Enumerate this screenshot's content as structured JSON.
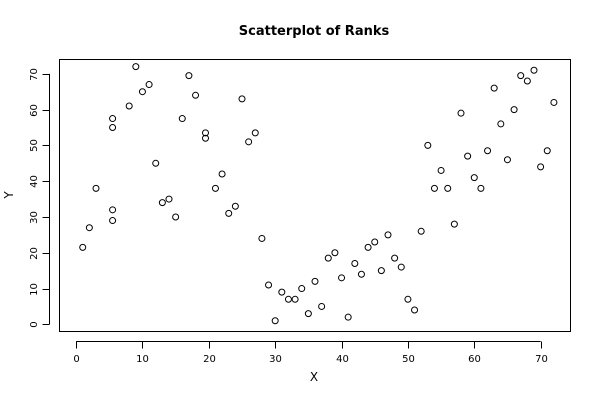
{
  "chart_data": {
    "type": "scatter",
    "title": "Scatterplot of Ranks",
    "xlabel": "X",
    "ylabel": "Y",
    "xlim": [
      -2.5,
      74.5
    ],
    "ylim": [
      -2.0,
      74.0
    ],
    "x_ticks": [
      0,
      10,
      20,
      30,
      40,
      50,
      60,
      70
    ],
    "y_ticks": [
      0,
      10,
      20,
      30,
      40,
      50,
      60,
      70
    ],
    "x_tick_labels": [
      "0",
      "10",
      "20",
      "30",
      "40",
      "50",
      "60",
      "70"
    ],
    "y_tick_labels": [
      "0",
      "10",
      "20",
      "30",
      "40",
      "50",
      "60",
      "70"
    ],
    "grid": false,
    "marker": "open-circle",
    "marker_color": "#000000",
    "points": [
      [
        1,
        21.5
      ],
      [
        2,
        27
      ],
      [
        3,
        38
      ],
      [
        5.5,
        57.5
      ],
      [
        5.5,
        55
      ],
      [
        5.5,
        32
      ],
      [
        5.5,
        29
      ],
      [
        8,
        61
      ],
      [
        9,
        72
      ],
      [
        10,
        65
      ],
      [
        11,
        67
      ],
      [
        12,
        45
      ],
      [
        13,
        34
      ],
      [
        14,
        35
      ],
      [
        15,
        30
      ],
      [
        16,
        57.5
      ],
      [
        17,
        69.5
      ],
      [
        18,
        64
      ],
      [
        19.5,
        53.5
      ],
      [
        19.5,
        52
      ],
      [
        21,
        38
      ],
      [
        22,
        42
      ],
      [
        23,
        31
      ],
      [
        24,
        33
      ],
      [
        25,
        63
      ],
      [
        26,
        51
      ],
      [
        27,
        53.5
      ],
      [
        28,
        24
      ],
      [
        29,
        11
      ],
      [
        30,
        1
      ],
      [
        31,
        9
      ],
      [
        32,
        7
      ],
      [
        33,
        7
      ],
      [
        34,
        10
      ],
      [
        35,
        3
      ],
      [
        36,
        12
      ],
      [
        37,
        5
      ],
      [
        38,
        18.5
      ],
      [
        39,
        20
      ],
      [
        40,
        13
      ],
      [
        41,
        2
      ],
      [
        42,
        17
      ],
      [
        43,
        14
      ],
      [
        44,
        21.5
      ],
      [
        45,
        23
      ],
      [
        46,
        15
      ],
      [
        47,
        25
      ],
      [
        48,
        18.5
      ],
      [
        49,
        16
      ],
      [
        50,
        7
      ],
      [
        51,
        4
      ],
      [
        52,
        26
      ],
      [
        53,
        50
      ],
      [
        54,
        38
      ],
      [
        55,
        43
      ],
      [
        56,
        38
      ],
      [
        57,
        28
      ],
      [
        58,
        59
      ],
      [
        59,
        47
      ],
      [
        60,
        41
      ],
      [
        61,
        38
      ],
      [
        62,
        48.5
      ],
      [
        63,
        66
      ],
      [
        64,
        56
      ],
      [
        65,
        46
      ],
      [
        66,
        60
      ],
      [
        67,
        69.5
      ],
      [
        68,
        68
      ],
      [
        69,
        71
      ],
      [
        70,
        44
      ],
      [
        71,
        48.5
      ],
      [
        72,
        62
      ]
    ]
  }
}
